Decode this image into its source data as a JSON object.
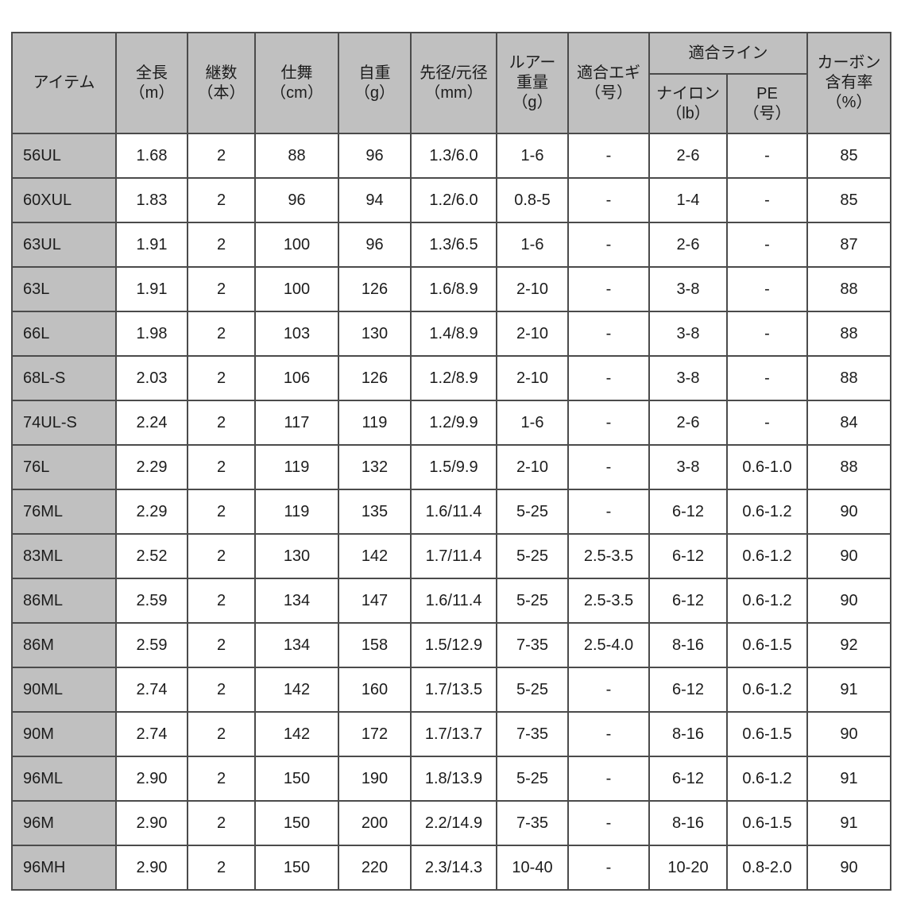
{
  "table": {
    "header": {
      "item": "アイテム",
      "length": "全長\n（m）",
      "pieces": "継数\n（本）",
      "closed": "仕舞\n（cm）",
      "weight": "自重\n（g）",
      "diameter": "先径/元径\n（mm）",
      "lure": "ルアー\n重量\n（g）",
      "egi": "適合エギ\n（号）",
      "line_group": "適合ライン",
      "nylon": "ナイロン\n（lb）",
      "pe": "PE\n（号）",
      "carbon": "カーボン\n含有率\n（%）"
    },
    "rows": [
      [
        "56UL",
        "1.68",
        "2",
        "88",
        "96",
        "1.3/6.0",
        "1-6",
        "-",
        "2-6",
        "-",
        "85"
      ],
      [
        "60XUL",
        "1.83",
        "2",
        "96",
        "94",
        "1.2/6.0",
        "0.8-5",
        "-",
        "1-4",
        "-",
        "85"
      ],
      [
        "63UL",
        "1.91",
        "2",
        "100",
        "96",
        "1.3/6.5",
        "1-6",
        "-",
        "2-6",
        "-",
        "87"
      ],
      [
        "63L",
        "1.91",
        "2",
        "100",
        "126",
        "1.6/8.9",
        "2-10",
        "-",
        "3-8",
        "-",
        "88"
      ],
      [
        "66L",
        "1.98",
        "2",
        "103",
        "130",
        "1.4/8.9",
        "2-10",
        "-",
        "3-8",
        "-",
        "88"
      ],
      [
        "68L-S",
        "2.03",
        "2",
        "106",
        "126",
        "1.2/8.9",
        "2-10",
        "-",
        "3-8",
        "-",
        "88"
      ],
      [
        "74UL-S",
        "2.24",
        "2",
        "117",
        "119",
        "1.2/9.9",
        "1-6",
        "-",
        "2-6",
        "-",
        "84"
      ],
      [
        "76L",
        "2.29",
        "2",
        "119",
        "132",
        "1.5/9.9",
        "2-10",
        "-",
        "3-8",
        "0.6-1.0",
        "88"
      ],
      [
        "76ML",
        "2.29",
        "2",
        "119",
        "135",
        "1.6/11.4",
        "5-25",
        "-",
        "6-12",
        "0.6-1.2",
        "90"
      ],
      [
        "83ML",
        "2.52",
        "2",
        "130",
        "142",
        "1.7/11.4",
        "5-25",
        "2.5-3.5",
        "6-12",
        "0.6-1.2",
        "90"
      ],
      [
        "86ML",
        "2.59",
        "2",
        "134",
        "147",
        "1.6/11.4",
        "5-25",
        "2.5-3.5",
        "6-12",
        "0.6-1.2",
        "90"
      ],
      [
        "86M",
        "2.59",
        "2",
        "134",
        "158",
        "1.5/12.9",
        "7-35",
        "2.5-4.0",
        "8-16",
        "0.6-1.5",
        "92"
      ],
      [
        "90ML",
        "2.74",
        "2",
        "142",
        "160",
        "1.7/13.5",
        "5-25",
        "-",
        "6-12",
        "0.6-1.2",
        "91"
      ],
      [
        "90M",
        "2.74",
        "2",
        "142",
        "172",
        "1.7/13.7",
        "7-35",
        "-",
        "8-16",
        "0.6-1.5",
        "90"
      ],
      [
        "96ML",
        "2.90",
        "2",
        "150",
        "190",
        "1.8/13.9",
        "5-25",
        "-",
        "6-12",
        "0.6-1.2",
        "91"
      ],
      [
        "96M",
        "2.90",
        "2",
        "150",
        "200",
        "2.2/14.9",
        "7-35",
        "-",
        "8-16",
        "0.6-1.5",
        "91"
      ],
      [
        "96MH",
        "2.90",
        "2",
        "150",
        "220",
        "2.3/14.3",
        "10-40",
        "-",
        "10-20",
        "0.8-2.0",
        "90"
      ]
    ],
    "colors": {
      "header_bg": "#c0c0c0",
      "border": "#4b4b4b",
      "text": "#1c1c1c",
      "row_bg": "#ffffff"
    }
  }
}
